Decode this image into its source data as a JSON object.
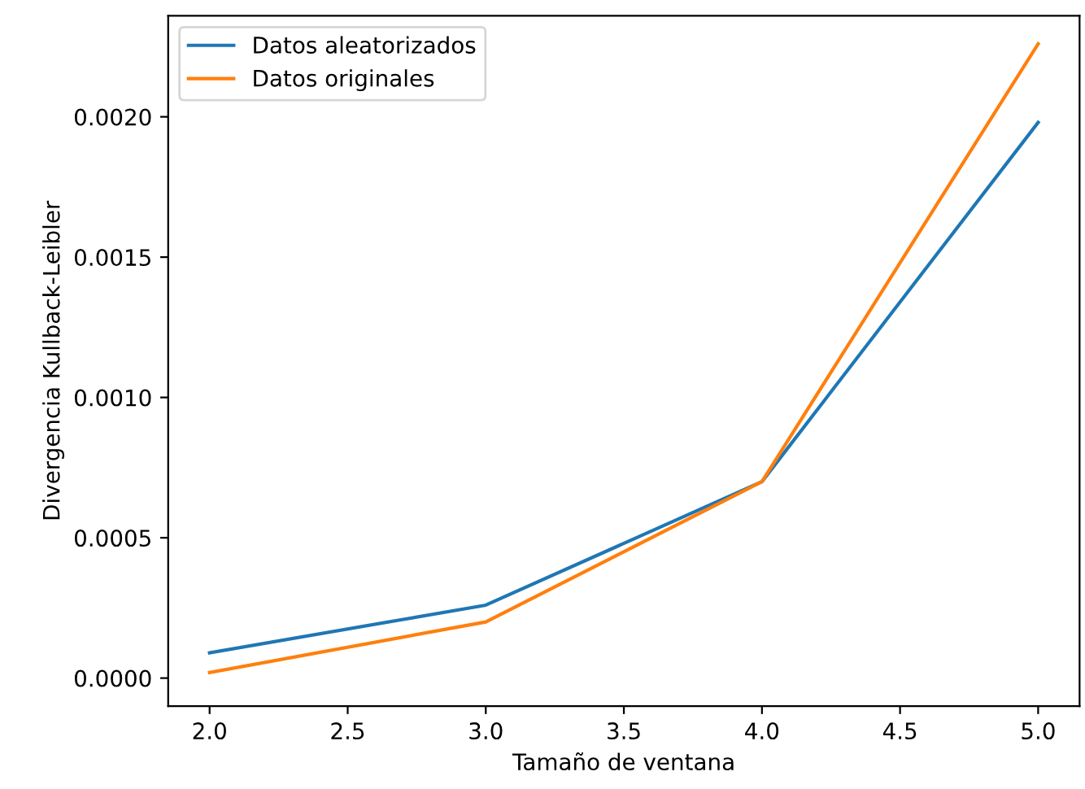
{
  "chart_data": {
    "type": "line",
    "xlabel": "Tamaño de ventana",
    "ylabel": "Divergencia Kullback-Leibler",
    "x": [
      2.0,
      3.0,
      4.0,
      5.0
    ],
    "series": [
      {
        "name": "Datos aleatorizados",
        "color": "#1f77b4",
        "values": [
          9e-05,
          0.00026,
          0.0007,
          0.00198
        ]
      },
      {
        "name": "Datos originales",
        "color": "#ff7f0e",
        "values": [
          2e-05,
          0.0002,
          0.0007,
          0.00226
        ]
      }
    ],
    "xlim": [
      1.85,
      5.15
    ],
    "ylim": [
      -0.0001,
      0.00236
    ],
    "xticks": [
      {
        "value": 2.0,
        "label": "2.0"
      },
      {
        "value": 2.5,
        "label": "2.5"
      },
      {
        "value": 3.0,
        "label": "3.0"
      },
      {
        "value": 3.5,
        "label": "3.5"
      },
      {
        "value": 4.0,
        "label": "4.0"
      },
      {
        "value": 4.5,
        "label": "4.5"
      },
      {
        "value": 5.0,
        "label": "5.0"
      }
    ],
    "yticks": [
      {
        "value": 0,
        "label": "0.0000"
      },
      {
        "value": 0.0005,
        "label": "0.0005"
      },
      {
        "value": 0.001,
        "label": "0.0010"
      },
      {
        "value": 0.0015,
        "label": "0.0015"
      },
      {
        "value": 0.002,
        "label": "0.0020"
      }
    ],
    "legend": "top left",
    "grid": false,
    "marker": "none",
    "line_style": "solid"
  }
}
